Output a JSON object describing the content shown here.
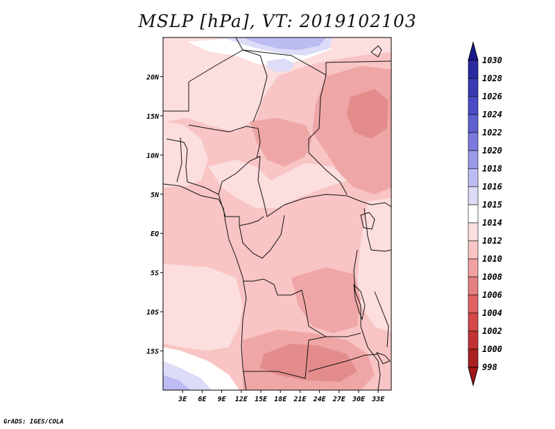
{
  "title": "MSLP [hPa], VT: 2019102103",
  "credit": "GrADS: IGES/COLA",
  "map": {
    "lat_ticks": [
      {
        "label": "20N",
        "lat": 20
      },
      {
        "label": "15N",
        "lat": 15
      },
      {
        "label": "10N",
        "lat": 10
      },
      {
        "label": "5N",
        "lat": 5
      },
      {
        "label": "EQ",
        "lat": 0
      },
      {
        "label": "5S",
        "lat": -5
      },
      {
        "label": "10S",
        "lat": -10
      },
      {
        "label": "15S",
        "lat": -15
      }
    ],
    "lon_ticks": [
      {
        "label": "3E",
        "lon": 3
      },
      {
        "label": "6E",
        "lon": 6
      },
      {
        "label": "9E",
        "lon": 9
      },
      {
        "label": "12E",
        "lon": 12
      },
      {
        "label": "15E",
        "lon": 15
      },
      {
        "label": "18E",
        "lon": 18
      },
      {
        "label": "21E",
        "lon": 21
      },
      {
        "label": "24E",
        "lon": 24
      },
      {
        "label": "27E",
        "lon": 27
      },
      {
        "label": "30E",
        "lon": 30
      },
      {
        "label": "33E",
        "lon": 33
      }
    ],
    "lon_range": [
      0,
      35
    ],
    "lat_range": [
      -20,
      25
    ]
  },
  "colorbar": {
    "levels": [
      {
        "label": "1030",
        "color": "#1a1a8c"
      },
      {
        "label": "1028",
        "color": "#2a2aa0"
      },
      {
        "label": "1026",
        "color": "#3a3ab4"
      },
      {
        "label": "1024",
        "color": "#4a4ac4"
      },
      {
        "label": "1022",
        "color": "#6060d2"
      },
      {
        "label": "1020",
        "color": "#7a7ade"
      },
      {
        "label": "1018",
        "color": "#9a9ae8"
      },
      {
        "label": "1016",
        "color": "#bcbcf2"
      },
      {
        "label": "1015",
        "color": "#dcdcf8"
      },
      {
        "label": "1014",
        "color": "#ffffff"
      },
      {
        "label": "1012",
        "color": "#fce0e0"
      },
      {
        "label": "1010",
        "color": "#f8c4c4"
      },
      {
        "label": "1008",
        "color": "#f0a0a0"
      },
      {
        "label": "1006",
        "color": "#e48080"
      },
      {
        "label": "1004",
        "color": "#e06262"
      },
      {
        "label": "1002",
        "color": "#d44848"
      },
      {
        "label": "1000",
        "color": "#c03232"
      },
      {
        "label": "998",
        "color": "#a82020"
      }
    ],
    "bottom_color": "#a01818"
  },
  "palette": {
    "p1010": "#f8c4c4",
    "p1012": "#fcdede",
    "p1014": "#ffffff",
    "p1015": "#dcdcf8",
    "p1016": "#bcbcf2",
    "p1008": "#efa6a6",
    "p1006": "#e48c8c"
  }
}
